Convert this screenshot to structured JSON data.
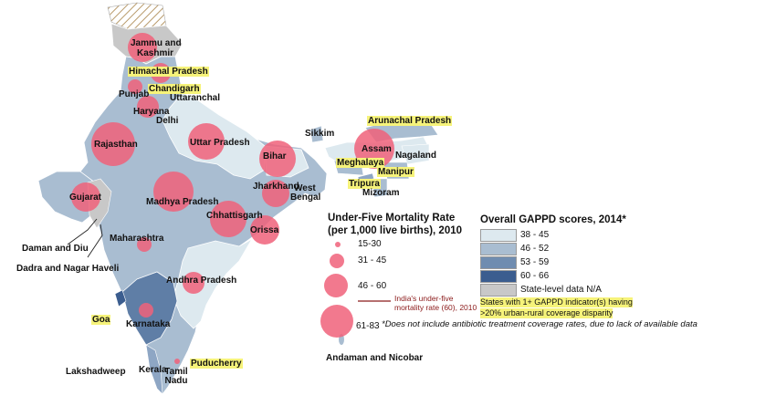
{
  "colors": {
    "very_light": "#dde9ef",
    "light": "#a9bdd1",
    "medium": "#6f8cb0",
    "dark": "#3b5d8f",
    "na": "#c8c8c8",
    "bubble": "#f0627a",
    "highlight": "#f6f37a"
  },
  "bubble_legend": {
    "title_line1": "Under-Five Mortality Rate",
    "title_line2": "(per 1,000 live births), 2010",
    "items": [
      {
        "label": "15-30"
      },
      {
        "label": "31 - 45"
      },
      {
        "label": "46 - 60"
      },
      {
        "label": "61-83"
      }
    ],
    "national_line1": "India's under-five",
    "national_line2": "mortality rate (60), 2010"
  },
  "score_legend": {
    "title": "Overall GAPPD scores, 2014*",
    "items": [
      {
        "label": "38 - 45",
        "color": "#dde9ef"
      },
      {
        "label": "46 - 52",
        "color": "#a9bdd1"
      },
      {
        "label": "53 - 59",
        "color": "#6f8cb0"
      },
      {
        "label": "60 - 66",
        "color": "#3b5d8f"
      },
      {
        "label": "State-level data N/A",
        "color": "#c8c8c8"
      }
    ],
    "highlight_line1": "States with 1+ GAPPD indicator(s) having",
    "highlight_line2": ">20% urban-rural coverage disparity"
  },
  "footnote": "*Does not include antibiotic treatment coverage rates, due to lack of available data",
  "labels": {
    "jammu": "Jammu and",
    "kashmir": "Kashmir",
    "himachal": "Himachal Pradesh",
    "punjab": "Punjab",
    "chandigarh": "Chandigarh",
    "uttaranchal": "Uttaranchal",
    "haryana": "Haryana",
    "delhi": "Delhi",
    "rajasthan": "Rajasthan",
    "uttar_pradesh": "Uttar Pradesh",
    "bihar": "Bihar",
    "sikkim": "Sikkim",
    "arunachal": "Arunachal Pradesh",
    "assam": "Assam",
    "nagaland": "Nagaland",
    "meghalaya": "Meghalaya",
    "manipur": "Manipur",
    "tripura": "Tripura",
    "mizoram": "Mizoram",
    "gujarat": "Gujarat",
    "madhya_pradesh": "Madhya Pradesh",
    "jharkhand": "Jharkhand",
    "west_bengal_1": "West",
    "west_bengal_2": "Bengal",
    "chhattisgarh": "Chhattisgarh",
    "orissa": "Orissa",
    "daman": "Daman and Diu",
    "dadra": "Dadra and Nagar Haveli",
    "maharashtra": "Maharashtra",
    "andhra": "Andhra Pradesh",
    "goa": "Goa",
    "karnataka": "Karnataka",
    "puducherry": "Puducherry",
    "tamil_1": "Tamil",
    "tamil_2": "Nadu",
    "kerala": "Kerala",
    "lakshadweep": "Lakshadweep",
    "andaman": "Andaman and Nicobar"
  },
  "states": [
    {
      "name": "Jammu and Kashmir",
      "score_class": "na",
      "u5mr": "46-60"
    },
    {
      "name": "Himachal Pradesh",
      "score_class": "46-52",
      "u5mr": "31-45"
    },
    {
      "name": "Punjab",
      "score_class": "46-52",
      "u5mr": "31-45"
    },
    {
      "name": "Haryana",
      "score_class": "46-52",
      "u5mr": "46-60"
    },
    {
      "name": "Rajasthan",
      "score_class": "46-52",
      "u5mr": "61-83"
    },
    {
      "name": "Uttar Pradesh",
      "score_class": "38-45",
      "u5mr": "61-83"
    },
    {
      "name": "Bihar",
      "score_class": "38-45",
      "u5mr": "61-83"
    },
    {
      "name": "Assam",
      "score_class": "38-45",
      "u5mr": "61-83"
    },
    {
      "name": "Gujarat",
      "score_class": "46-52",
      "u5mr": "46-60"
    },
    {
      "name": "Madhya Pradesh",
      "score_class": "46-52",
      "u5mr": "61-83"
    },
    {
      "name": "Jharkhand",
      "score_class": "46-52",
      "u5mr": "46-60"
    },
    {
      "name": "Chhattisgarh",
      "score_class": "46-52",
      "u5mr": "61-83"
    },
    {
      "name": "Orissa",
      "score_class": "46-52",
      "u5mr": "61-83"
    },
    {
      "name": "Maharashtra",
      "score_class": "46-52",
      "u5mr": "31-45"
    },
    {
      "name": "Andhra Pradesh",
      "score_class": "38-45",
      "u5mr": "46-60"
    },
    {
      "name": "Karnataka",
      "score_class": "53-59",
      "u5mr": "31-45"
    },
    {
      "name": "Kerala",
      "score_class": "46-52",
      "u5mr": "15-30"
    },
    {
      "name": "Tamil Nadu",
      "score_class": "46-52",
      "u5mr": "15-30"
    },
    {
      "name": "Goa",
      "score_class": "60-66",
      "u5mr": null
    }
  ]
}
